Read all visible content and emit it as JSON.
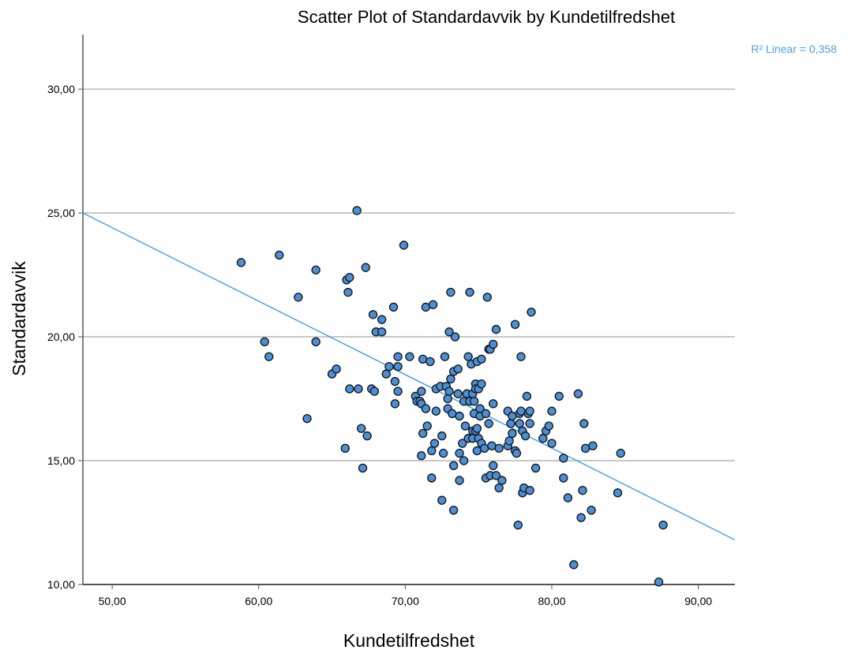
{
  "chart_data": {
    "type": "scatter",
    "title": "Scatter Plot of Standardavvik by Kundetilfredshet",
    "xlabel": "Kundetilfredshet",
    "ylabel": "Standardavvik",
    "xlim": [
      48,
      92.5
    ],
    "ylim": [
      10,
      32.2
    ],
    "x_ticks": [
      50,
      60,
      70,
      80,
      90
    ],
    "x_tick_labels": [
      "50,00",
      "60,00",
      "70,00",
      "80,00",
      "90,00"
    ],
    "y_ticks": [
      10,
      15,
      20,
      25,
      30
    ],
    "y_tick_labels": [
      "10,00",
      "15,00",
      "20,00",
      "25,00",
      "30,00"
    ],
    "grid": "horizontal",
    "fit_line": {
      "label": "R² Linear = 0,358",
      "points": [
        [
          48,
          25.0
        ],
        [
          92.5,
          11.8
        ]
      ]
    },
    "colors": {
      "marker_fill": "#4a90d9",
      "marker_edge": "#1a1a1a",
      "fit_line": "#4aa3e0",
      "gridline": "#c8c8c8",
      "axis": "#555555"
    },
    "points": [
      [
        58.8,
        23.0
      ],
      [
        60.4,
        19.8
      ],
      [
        60.7,
        19.2
      ],
      [
        61.4,
        23.3
      ],
      [
        62.7,
        21.6
      ],
      [
        63.3,
        16.7
      ],
      [
        63.9,
        22.7
      ],
      [
        63.9,
        19.8
      ],
      [
        65.0,
        18.5
      ],
      [
        65.3,
        18.7
      ],
      [
        65.9,
        15.5
      ],
      [
        66.0,
        22.3
      ],
      [
        66.2,
        22.4
      ],
      [
        66.1,
        21.8
      ],
      [
        66.2,
        17.9
      ],
      [
        66.7,
        25.1
      ],
      [
        66.8,
        17.9
      ],
      [
        67.0,
        16.3
      ],
      [
        67.1,
        14.7
      ],
      [
        67.3,
        22.8
      ],
      [
        67.4,
        16.0
      ],
      [
        67.7,
        17.9
      ],
      [
        67.8,
        20.9
      ],
      [
        67.9,
        17.8
      ],
      [
        68.0,
        20.2
      ],
      [
        68.4,
        20.7
      ],
      [
        68.4,
        20.2
      ],
      [
        68.7,
        18.5
      ],
      [
        68.9,
        18.8
      ],
      [
        69.2,
        21.2
      ],
      [
        69.3,
        18.2
      ],
      [
        69.3,
        17.3
      ],
      [
        69.5,
        18.8
      ],
      [
        69.5,
        19.2
      ],
      [
        69.5,
        17.8
      ],
      [
        69.9,
        23.7
      ],
      [
        70.3,
        19.2
      ],
      [
        70.7,
        17.6
      ],
      [
        70.8,
        17.4
      ],
      [
        71.0,
        17.4
      ],
      [
        71.1,
        17.8
      ],
      [
        71.1,
        17.3
      ],
      [
        71.2,
        19.1
      ],
      [
        71.2,
        16.1
      ],
      [
        71.1,
        15.2
      ],
      [
        71.4,
        21.2
      ],
      [
        71.4,
        17.1
      ],
      [
        71.5,
        16.4
      ],
      [
        71.7,
        19.0
      ],
      [
        71.8,
        15.4
      ],
      [
        71.8,
        14.3
      ],
      [
        71.9,
        21.3
      ],
      [
        72.0,
        15.7
      ],
      [
        72.1,
        17.9
      ],
      [
        72.1,
        17.0
      ],
      [
        72.4,
        18.0
      ],
      [
        72.5,
        13.4
      ],
      [
        72.5,
        16.0
      ],
      [
        72.6,
        15.3
      ],
      [
        72.7,
        19.2
      ],
      [
        72.8,
        18.0
      ],
      [
        72.9,
        17.5
      ],
      [
        72.9,
        17.1
      ],
      [
        73.0,
        20.2
      ],
      [
        73.0,
        17.8
      ],
      [
        73.1,
        18.3
      ],
      [
        73.1,
        21.8
      ],
      [
        73.2,
        16.9
      ],
      [
        73.3,
        18.6
      ],
      [
        73.3,
        14.8
      ],
      [
        73.3,
        13.0
      ],
      [
        73.4,
        20.0
      ],
      [
        73.6,
        17.7
      ],
      [
        73.6,
        18.7
      ],
      [
        73.7,
        16.8
      ],
      [
        73.7,
        15.3
      ],
      [
        73.7,
        14.2
      ],
      [
        73.9,
        15.7
      ],
      [
        74.0,
        17.4
      ],
      [
        74.0,
        15.0
      ],
      [
        74.1,
        16.4
      ],
      [
        74.2,
        17.7
      ],
      [
        74.3,
        15.9
      ],
      [
        74.3,
        19.2
      ],
      [
        74.4,
        21.8
      ],
      [
        74.4,
        17.4
      ],
      [
        74.5,
        18.9
      ],
      [
        74.6,
        16.2
      ],
      [
        74.6,
        15.9
      ],
      [
        74.6,
        17.7
      ],
      [
        74.7,
        16.9
      ],
      [
        74.7,
        17.4
      ],
      [
        74.8,
        18.1
      ],
      [
        74.8,
        17.9
      ],
      [
        74.8,
        16.2
      ],
      [
        74.9,
        15.4
      ],
      [
        74.9,
        19.0
      ],
      [
        74.9,
        16.3
      ],
      [
        75.0,
        15.9
      ],
      [
        75.0,
        17.9
      ],
      [
        75.1,
        17.1
      ],
      [
        75.1,
        16.8
      ],
      [
        75.2,
        15.7
      ],
      [
        75.2,
        18.1
      ],
      [
        75.2,
        19.1
      ],
      [
        75.4,
        15.5
      ],
      [
        75.5,
        14.3
      ],
      [
        75.5,
        16.9
      ],
      [
        75.6,
        21.6
      ],
      [
        75.7,
        19.5
      ],
      [
        75.7,
        16.5
      ],
      [
        75.8,
        19.5
      ],
      [
        75.8,
        14.4
      ],
      [
        75.9,
        15.6
      ],
      [
        76.0,
        19.7
      ],
      [
        76.0,
        17.3
      ],
      [
        76.0,
        14.8
      ],
      [
        76.2,
        20.3
      ],
      [
        76.2,
        14.4
      ],
      [
        76.4,
        13.9
      ],
      [
        76.4,
        15.5
      ],
      [
        76.6,
        14.2
      ],
      [
        77.0,
        17.0
      ],
      [
        77.0,
        15.6
      ],
      [
        77.1,
        15.8
      ],
      [
        77.2,
        16.5
      ],
      [
        77.3,
        16.8
      ],
      [
        77.3,
        16.1
      ],
      [
        77.5,
        15.4
      ],
      [
        77.5,
        20.5
      ],
      [
        77.6,
        15.3
      ],
      [
        77.7,
        12.4
      ],
      [
        77.8,
        16.9
      ],
      [
        77.8,
        16.5
      ],
      [
        77.9,
        17.0
      ],
      [
        77.9,
        19.2
      ],
      [
        78.0,
        13.7
      ],
      [
        78.0,
        16.2
      ],
      [
        78.1,
        13.9
      ],
      [
        78.2,
        16.0
      ],
      [
        78.3,
        17.6
      ],
      [
        78.4,
        16.9
      ],
      [
        78.5,
        13.8
      ],
      [
        78.5,
        17.0
      ],
      [
        78.5,
        16.5
      ],
      [
        78.6,
        21.0
      ],
      [
        78.9,
        14.7
      ],
      [
        79.4,
        15.9
      ],
      [
        79.6,
        16.2
      ],
      [
        79.8,
        16.4
      ],
      [
        80.0,
        17.0
      ],
      [
        80.0,
        15.7
      ],
      [
        80.5,
        17.6
      ],
      [
        80.8,
        15.1
      ],
      [
        80.8,
        14.3
      ],
      [
        81.1,
        13.5
      ],
      [
        81.5,
        10.8
      ],
      [
        81.8,
        17.7
      ],
      [
        82.0,
        12.7
      ],
      [
        82.1,
        13.8
      ],
      [
        82.2,
        16.5
      ],
      [
        82.3,
        15.5
      ],
      [
        82.7,
        13.0
      ],
      [
        82.8,
        15.6
      ],
      [
        84.5,
        13.7
      ],
      [
        84.7,
        15.3
      ],
      [
        87.3,
        10.1
      ],
      [
        87.6,
        12.4
      ]
    ]
  }
}
